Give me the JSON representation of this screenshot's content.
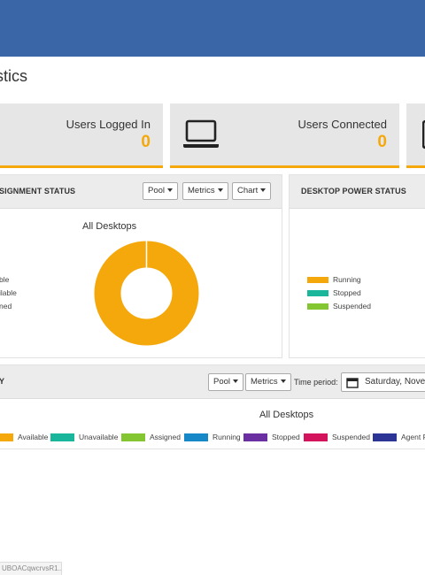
{
  "page": {
    "title": "tistics"
  },
  "stats": [
    {
      "label": "Users Logged In",
      "value": "0"
    },
    {
      "label": "Users Connected",
      "value": "0",
      "icon": "laptop-icon"
    }
  ],
  "assignment_panel": {
    "title": "SIGNMENT STATUS",
    "buttons": {
      "pool": "Pool",
      "metrics": "Metrics",
      "chart": "Chart"
    },
    "chart_title": "All Desktops",
    "legend": [
      "ble",
      "ilable",
      "ned"
    ]
  },
  "power_panel": {
    "title": "DESKTOP POWER STATUS",
    "legend": [
      {
        "label": "Running",
        "color": "#f5a80c"
      },
      {
        "label": "Stopped",
        "color": "#1ab69c"
      },
      {
        "label": "Suspended",
        "color": "#84c532"
      }
    ]
  },
  "history_panel": {
    "title": "Y",
    "buttons": {
      "pool": "Pool",
      "metrics": "Metrics"
    },
    "time_period_label": "Time period:",
    "date_value": "Saturday, Novem",
    "chart_title": "All Desktops",
    "legend": [
      {
        "label": "Available",
        "color": "#f5a80c"
      },
      {
        "label": "Unavailable",
        "color": "#1ab69c"
      },
      {
        "label": "Assigned",
        "color": "#84c532"
      },
      {
        "label": "Running",
        "color": "#1688c8"
      },
      {
        "label": "Stopped",
        "color": "#6a2fa0"
      },
      {
        "label": "Suspended",
        "color": "#d3145c"
      },
      {
        "label": "Agent R",
        "color": "#2c3596"
      }
    ]
  },
  "chart_data": {
    "type": "pie",
    "title": "All Desktops",
    "categories": [
      "Available"
    ],
    "values": [
      100
    ],
    "colors": [
      "#f5a80c"
    ]
  },
  "statusbar": {
    "text": "UBOACqwcrvsR1..."
  },
  "colors": {
    "header": "#3a66a7",
    "accent": "#f5a80c"
  }
}
